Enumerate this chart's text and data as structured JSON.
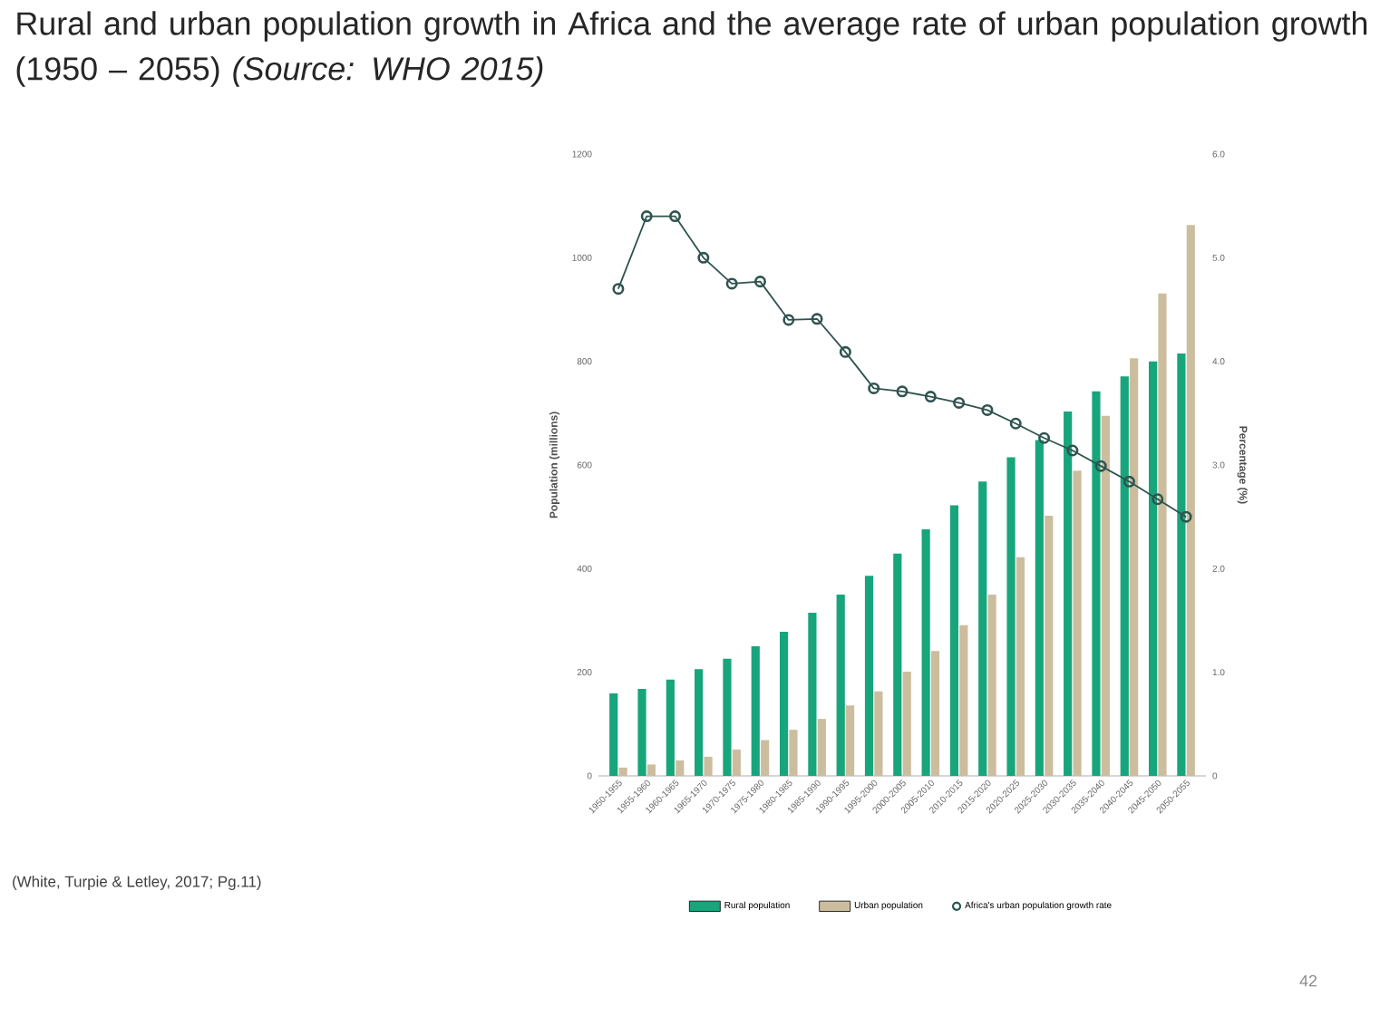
{
  "chart_data": {
    "type": "bar",
    "title": "Rural and urban population growth in Africa and the average rate of urban population growth (1950 – 2055) *(Source: WHO 2015)*",
    "ylabel": "Population (millions)",
    "y2label": "Percentage (%)",
    "categories": [
      "1950-1955",
      "1955-1960",
      "1960-1965",
      "1965-1970",
      "1970-1975",
      "1975-1980",
      "1980-1985",
      "1985-1990",
      "1990-1995",
      "1995-2000",
      "2000-2005",
      "2005-2010",
      "2010-2015",
      "2015-2020",
      "2020-2025",
      "2025-2030",
      "2030-2035",
      "2035-2040",
      "2040-2045",
      "2045-2050",
      "2050-2055"
    ],
    "series": [
      {
        "name": "Rural population",
        "color": "#17a57c",
        "values": [
          159,
          168,
          186,
          206,
          226,
          250,
          278,
          315,
          350,
          386,
          429,
          476,
          522,
          568,
          615,
          648,
          703,
          742,
          771,
          800,
          815
        ]
      },
      {
        "name": "Urban population",
        "color": "#cdbd9f",
        "values": [
          16,
          22,
          30,
          37,
          51,
          69,
          89,
          110,
          136,
          163,
          201,
          241,
          291,
          350,
          422,
          502,
          589,
          695,
          806,
          931,
          1063
        ]
      },
      {
        "name": "Africa's urban population growth rate",
        "type": "line",
        "axis": "y2",
        "color": "#2f5450",
        "values": [
          4.7,
          5.4,
          5.4,
          5.0,
          4.75,
          4.77,
          4.4,
          4.41,
          4.09,
          3.74,
          3.71,
          3.66,
          3.6,
          3.53,
          3.4,
          3.26,
          3.14,
          2.99,
          2.84,
          2.67,
          2.5
        ]
      }
    ],
    "ylim": [
      0,
      1200
    ],
    "yticks": [
      0,
      200,
      400,
      600,
      800,
      1000,
      1200
    ],
    "y2lim": [
      0,
      6
    ],
    "y2ticks": [
      0,
      {
        "value": 1,
        "label": "1.0"
      },
      {
        "value": 2,
        "label": "2.0"
      },
      {
        "value": 3,
        "label": "3.0"
      },
      {
        "value": 4,
        "label": "4.0"
      },
      {
        "value": 5,
        "label": "5.0"
      },
      {
        "value": 6,
        "label": "6.0"
      }
    ],
    "marker": "circle",
    "legend": "bottom",
    "grid": false,
    "annotations": [
      "(White, Turpie & Letley, 2017; Pg.11)",
      "42"
    ]
  }
}
